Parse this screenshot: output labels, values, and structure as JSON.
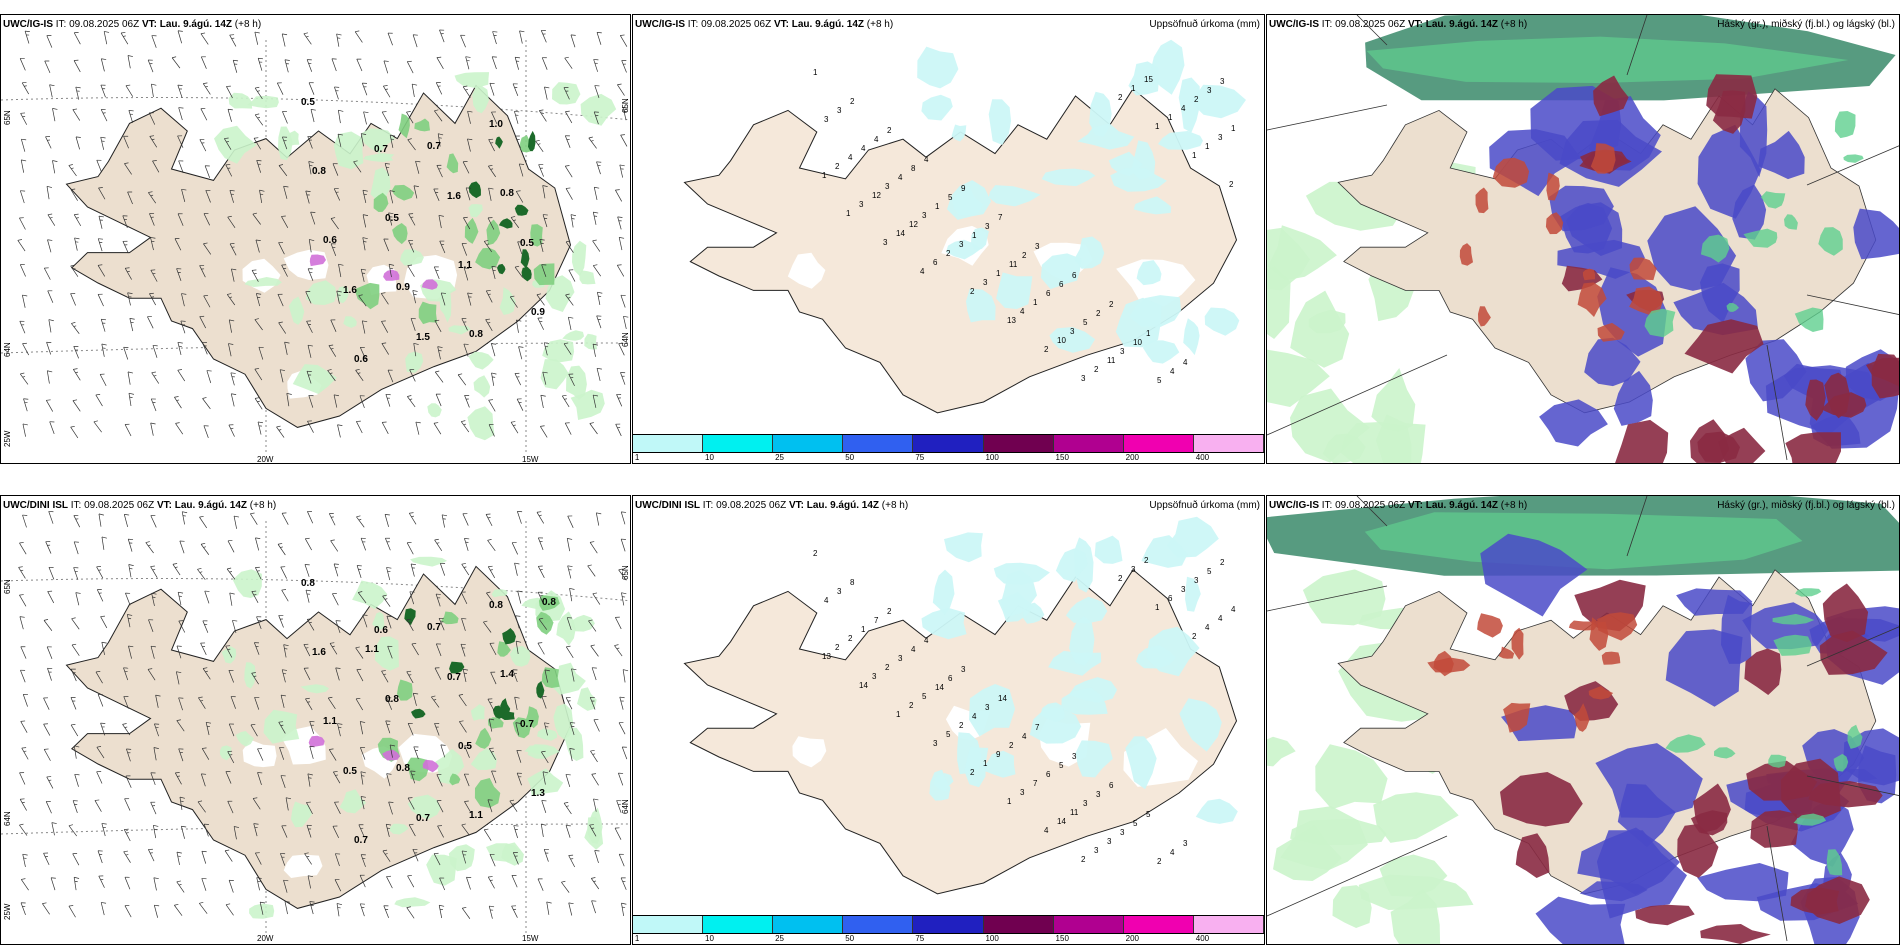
{
  "colors": {
    "land": "#ecdfcf",
    "landMid": "#f5e8da",
    "sea": "#ffffff",
    "coast": "#222222",
    "precip1": "#ccf7f7",
    "precip2": "#b4f3f3",
    "green1": "#cbf4cb",
    "green2": "#7fcf80",
    "green3": "#1c6a2a",
    "purple": "#d070d8",
    "blue": "#4a4ac8",
    "darkred": "#8a2a42",
    "red": "#c24a3a",
    "tealdark": "#3a8a6a",
    "cloudgreen": "#5fcf8f"
  },
  "cbar": {
    "colors": [
      "#c0f8f8",
      "#00f0f0",
      "#00c0f0",
      "#3060f0",
      "#2020c0",
      "#700050",
      "#b00090",
      "#f000b0",
      "#f8b0f0"
    ],
    "labels": [
      "1",
      "10",
      "25",
      "50",
      "75",
      "100",
      "150",
      "200",
      "400"
    ]
  },
  "rows": [
    {
      "model": "UWC/IG-IS",
      "it_label": "IT:",
      "it": "09.08.2025 06Z",
      "vt_label": "VT:",
      "vt": "Lau. 9.ágú. 14Z",
      "lead": "(+8 h)",
      "precip_title": "Uppsöfnuð úrkoma (mm)",
      "cloud_title": "Háský (gr.), miðský (fj.bl.) og lágský (bl.)",
      "wind_labels": [
        "0.5",
        "0.7",
        "1.6",
        "0.5",
        "1.6",
        "1.5",
        "1.0",
        "0.8",
        "0.5",
        "1.1",
        "0.9",
        "0.6",
        "0.7",
        "0.8",
        "0.6",
        "0.9",
        "0.8"
      ],
      "precip_values": [
        "1",
        "2",
        "2",
        "4",
        "9",
        "7",
        "3",
        "6",
        "2",
        "1",
        "4",
        "3",
        "3",
        "4",
        "8",
        "5",
        "3",
        "2",
        "6",
        "2",
        "10",
        "4",
        "3",
        "3",
        "4",
        "4",
        "1",
        "1",
        "11",
        "6",
        "5",
        "3",
        "5",
        "2",
        "1",
        "4",
        "3",
        "3",
        "3",
        "1",
        "1",
        "3",
        "11",
        "15",
        "4",
        "3",
        "2",
        "12",
        "12",
        "2",
        "3",
        "4",
        "10",
        "2",
        "1",
        "1",
        "1",
        "1",
        "3",
        "14",
        "6",
        "2",
        "13",
        "2",
        "3",
        "2",
        "1",
        "1",
        "2",
        "1",
        "3",
        "4"
      ],
      "coords": [
        "65N",
        "64N",
        "25W",
        "20W",
        "15W",
        "65N",
        "64N"
      ]
    },
    {
      "model": "UWC/DINI ISL",
      "it_label": "IT:",
      "it": "09.08.2025 06Z",
      "vt_label": "VT:",
      "vt": "Lau. 9.ágú. 14Z",
      "lead": "(+8 h)",
      "precip_title": "Uppsöfnuð úrkoma (mm)",
      "cloud_title": "Háský (gr.), miðský (fj.bl.) og lágský (bl.)",
      "cloud_model": "UWC/IG-IS",
      "wind_labels": [
        "0.8",
        "0.6",
        "0.7",
        "0.7",
        "0.5",
        "0.7",
        "0.8",
        "1.6",
        "0.8",
        "0.5",
        "1.3",
        "0.7",
        "0.7",
        "1.4",
        "1.1",
        "0.8",
        "1.1",
        "0.8",
        "1.1"
      ],
      "precip_values": [
        "2",
        "8",
        "2",
        "4",
        "3",
        "14",
        "7",
        "3",
        "6",
        "5",
        "3",
        "2",
        "3",
        "7",
        "4",
        "6",
        "3",
        "4",
        "5",
        "3",
        "5",
        "4",
        "5",
        "4",
        "1",
        "3",
        "14",
        "4",
        "2",
        "6",
        "3",
        "3",
        "2",
        "3",
        "4",
        "2",
        "2",
        "5",
        "2",
        "9",
        "7",
        "11",
        "3",
        "2",
        "3",
        "4",
        "2",
        "3",
        "2",
        "5",
        "1",
        "3",
        "14",
        "3",
        "3",
        "6",
        "4",
        "13",
        "14",
        "1",
        "3",
        "2",
        "1",
        "4",
        "2",
        "2",
        "1",
        "2"
      ],
      "coords": [
        "65N",
        "64N",
        "25W",
        "20W",
        "15W",
        "65N",
        "64N"
      ]
    }
  ]
}
